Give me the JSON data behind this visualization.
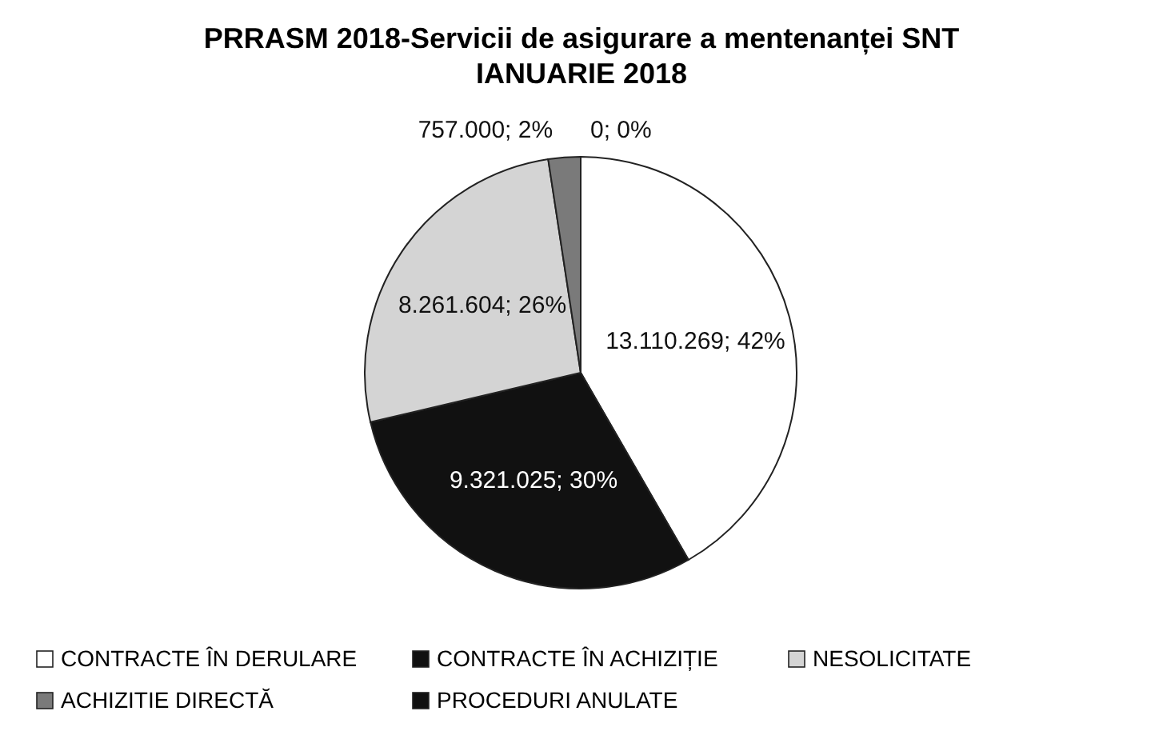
{
  "chart_data": {
    "type": "pie",
    "title": "PRRASM 2018-Servicii de asigurare a mentenanței SNT IANUARIE 2018",
    "categories": [
      "CONTRACTE ÎN DERULARE",
      "CONTRACTE ÎN ACHIZIȚIE",
      "NESOLICITATE",
      "ACHIZITIE DIRECTĂ",
      "PROCEDURI ANULATE"
    ],
    "values": [
      13110269,
      9321025,
      8261604,
      757000,
      0
    ],
    "value_labels": [
      "13.110.269; 42%",
      "9.321.025; 30%",
      "8.261.604; 26%",
      "757.000; 2%",
      "0; 0%"
    ],
    "colors": [
      "#ffffff",
      "#111111",
      "#d4d4d4",
      "#7a7a7a",
      "#111111"
    ],
    "legend": "bottom"
  }
}
